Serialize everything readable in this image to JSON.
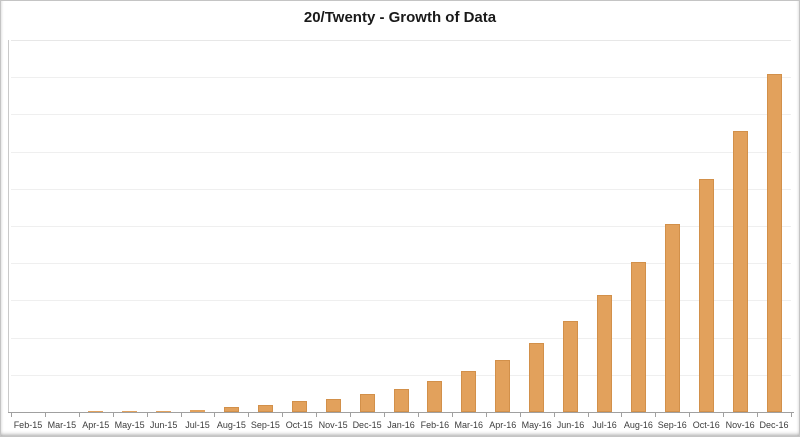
{
  "title": "20/Twenty - Growth of Data",
  "colors": {
    "bar_fill": "#e2a15c",
    "bar_border": "#d2904a",
    "gridline": "#efefef",
    "axis_line": "#a0a0a0",
    "label_text": "#3c3c3c",
    "title_text": "#1a1a1a",
    "frame_border": "#c4c4c4"
  },
  "chart_data": {
    "type": "bar",
    "title": "20/Twenty - Growth of Data",
    "xlabel": "",
    "ylabel": "",
    "y_axis_tick_labels": "none (unlabeled axis)",
    "legend": "none",
    "grid": "horizontal",
    "gridline_count": 10,
    "ylim": [
      0,
      110
    ],
    "categories": [
      "Feb-15",
      "Mar-15",
      "Apr-15",
      "May-15",
      "Jun-15",
      "Jul-15",
      "Aug-15",
      "Sep-15",
      "Oct-15",
      "Nov-15",
      "Dec-15",
      "Jan-16",
      "Feb-16",
      "Mar-16",
      "Apr-16",
      "May-16",
      "Jun-16",
      "Jul-16",
      "Aug-16",
      "Sep-16",
      "Oct-16",
      "Nov-16",
      "Dec-16"
    ],
    "values": [
      0.05,
      0.1,
      0.15,
      0.2,
      0.35,
      0.6,
      1.5,
      2.2,
      3.3,
      3.9,
      5.4,
      6.9,
      9.3,
      12.0,
      15.3,
      20.4,
      26.9,
      34.7,
      44.3,
      55.7,
      68.9,
      83.2,
      100
    ],
    "values_note": "relative units estimated from bar heights; axis is unlabeled; Dec-16 normalized to 100"
  }
}
